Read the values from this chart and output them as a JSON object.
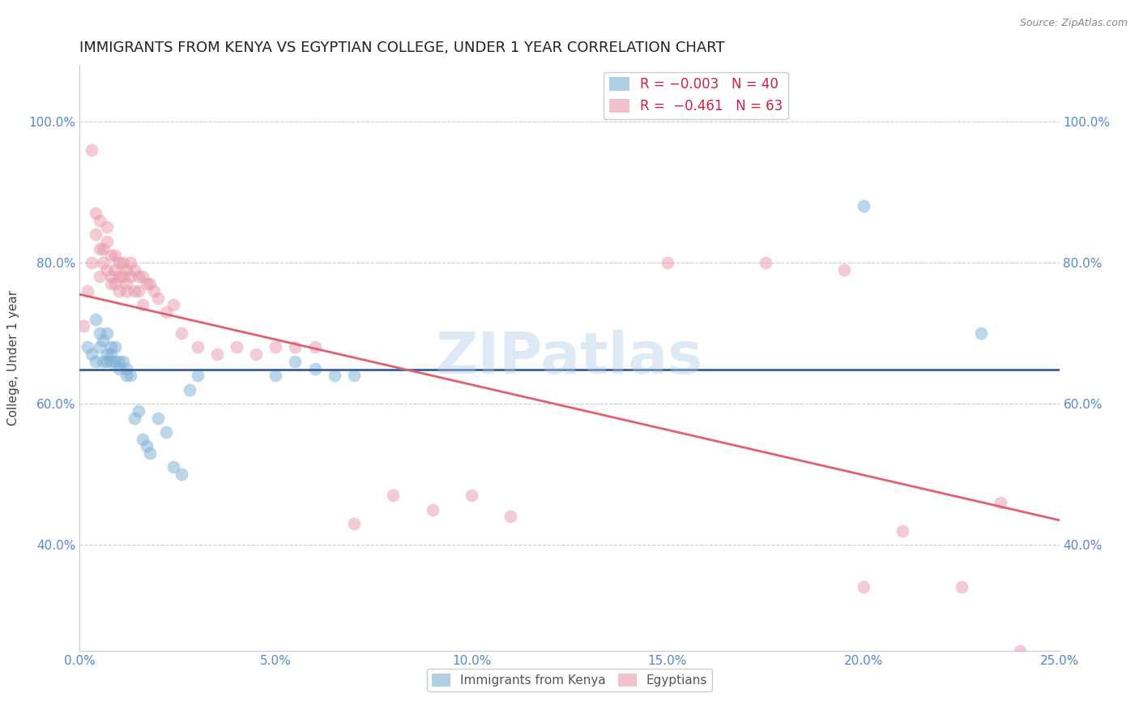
{
  "title": "IMMIGRANTS FROM KENYA VS EGYPTIAN COLLEGE, UNDER 1 YEAR CORRELATION CHART",
  "source": "Source: ZipAtlas.com",
  "ylabel": "College, Under 1 year",
  "xlim": [
    0.0,
    0.25
  ],
  "ylim": [
    0.25,
    1.08
  ],
  "xticks": [
    0.0,
    0.05,
    0.1,
    0.15,
    0.2,
    0.25
  ],
  "xtick_labels": [
    "0.0%",
    "5.0%",
    "10.0%",
    "15.0%",
    "20.0%",
    "25.0%"
  ],
  "yticks": [
    0.4,
    0.6,
    0.8,
    1.0
  ],
  "ytick_labels": [
    "40.0%",
    "60.0%",
    "80.0%",
    "100.0%"
  ],
  "watermark": "ZIPatlas",
  "blue_scatter_x": [
    0.002,
    0.003,
    0.004,
    0.004,
    0.005,
    0.005,
    0.006,
    0.006,
    0.007,
    0.007,
    0.007,
    0.008,
    0.008,
    0.008,
    0.009,
    0.009,
    0.01,
    0.01,
    0.011,
    0.012,
    0.012,
    0.013,
    0.014,
    0.015,
    0.016,
    0.017,
    0.018,
    0.02,
    0.022,
    0.024,
    0.026,
    0.028,
    0.03,
    0.05,
    0.055,
    0.06,
    0.065,
    0.07,
    0.2,
    0.23
  ],
  "blue_scatter_y": [
    0.68,
    0.67,
    0.66,
    0.72,
    0.68,
    0.7,
    0.66,
    0.69,
    0.67,
    0.7,
    0.66,
    0.68,
    0.66,
    0.67,
    0.68,
    0.66,
    0.66,
    0.65,
    0.66,
    0.64,
    0.65,
    0.64,
    0.58,
    0.59,
    0.55,
    0.54,
    0.53,
    0.58,
    0.56,
    0.51,
    0.5,
    0.62,
    0.64,
    0.64,
    0.66,
    0.65,
    0.64,
    0.64,
    0.88,
    0.7
  ],
  "pink_scatter_x": [
    0.001,
    0.002,
    0.003,
    0.003,
    0.004,
    0.004,
    0.005,
    0.005,
    0.005,
    0.006,
    0.006,
    0.007,
    0.007,
    0.007,
    0.008,
    0.008,
    0.008,
    0.009,
    0.009,
    0.009,
    0.01,
    0.01,
    0.01,
    0.011,
    0.011,
    0.012,
    0.012,
    0.012,
    0.013,
    0.013,
    0.014,
    0.014,
    0.015,
    0.015,
    0.016,
    0.016,
    0.017,
    0.018,
    0.019,
    0.02,
    0.022,
    0.024,
    0.026,
    0.03,
    0.035,
    0.04,
    0.045,
    0.05,
    0.055,
    0.06,
    0.07,
    0.08,
    0.09,
    0.1,
    0.11,
    0.15,
    0.175,
    0.195,
    0.2,
    0.21,
    0.225,
    0.235,
    0.24
  ],
  "pink_scatter_y": [
    0.71,
    0.76,
    0.8,
    0.96,
    0.87,
    0.84,
    0.78,
    0.82,
    0.86,
    0.8,
    0.82,
    0.79,
    0.85,
    0.83,
    0.78,
    0.81,
    0.77,
    0.79,
    0.77,
    0.81,
    0.78,
    0.8,
    0.76,
    0.8,
    0.78,
    0.79,
    0.77,
    0.76,
    0.8,
    0.78,
    0.79,
    0.76,
    0.78,
    0.76,
    0.78,
    0.74,
    0.77,
    0.77,
    0.76,
    0.75,
    0.73,
    0.74,
    0.7,
    0.68,
    0.67,
    0.68,
    0.67,
    0.68,
    0.68,
    0.68,
    0.43,
    0.47,
    0.45,
    0.47,
    0.44,
    0.8,
    0.8,
    0.79,
    0.34,
    0.42,
    0.34,
    0.46,
    0.25
  ],
  "pink_trendline_x": [
    0.0,
    0.25
  ],
  "pink_trendline_y": [
    0.755,
    0.435
  ],
  "blue_trendline_y": 0.648,
  "blue_color": "#7bafd4",
  "pink_color": "#e899aa",
  "blue_line_color": "#3a5fa0",
  "pink_line_color": "#e06070",
  "background_color": "#ffffff",
  "grid_color": "#cccccc",
  "title_fontsize": 13,
  "axis_label_fontsize": 11,
  "tick_fontsize": 11,
  "tick_color": "#5588cc",
  "legend_fontsize": 12,
  "source_fontsize": 9,
  "ylabel_color": "#444444",
  "watermark_color": "#aac8e8",
  "watermark_alpha": 0.4,
  "watermark_fontsize": 52
}
